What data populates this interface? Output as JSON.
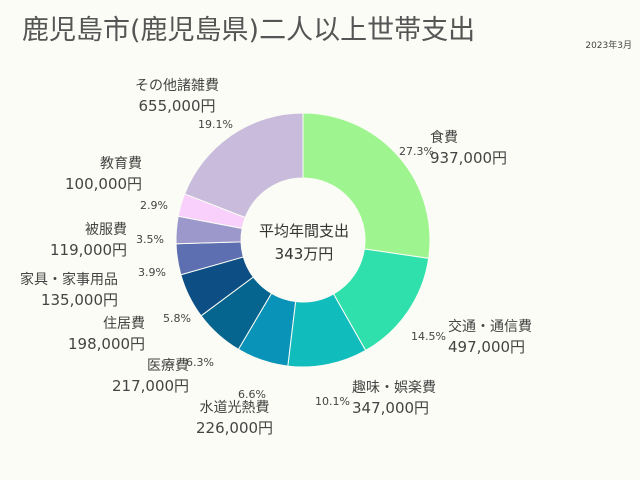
{
  "chart_data": {
    "type": "pie",
    "title": "鹿児島市(鹿児島県)二人以上世帯支出",
    "date": "2023年3月",
    "center_label": [
      "平均年間支出",
      "343万円"
    ],
    "slices": [
      {
        "name": "食費",
        "value_label": "937,000円",
        "value": 937000,
        "percent": 27.3,
        "percent_label": "27.3%",
        "color": "#9ef58f"
      },
      {
        "name": "交通・通信費",
        "value_label": "497,000円",
        "value": 497000,
        "percent": 14.5,
        "percent_label": "14.5%",
        "color": "#2fe0ad"
      },
      {
        "name": "趣味・娯楽費",
        "value_label": "347,000円",
        "value": 347000,
        "percent": 10.1,
        "percent_label": "10.1%",
        "color": "#11bcbd"
      },
      {
        "name": "水道光熱費",
        "value_label": "226,000円",
        "value": 226000,
        "percent": 6.6,
        "percent_label": "6.6%",
        "color": "#0a93b8"
      },
      {
        "name": "医療費",
        "value_label": "217,000円",
        "value": 217000,
        "percent": 6.3,
        "percent_label": "6.3%",
        "color": "#06658e"
      },
      {
        "name": "住居費",
        "value_label": "198,000円",
        "value": 198000,
        "percent": 5.8,
        "percent_label": "5.8%",
        "color": "#0d4f85"
      },
      {
        "name": "家具・家事用品",
        "value_label": "135,000円",
        "value": 135000,
        "percent": 3.9,
        "percent_label": "3.9%",
        "color": "#5d6fb0"
      },
      {
        "name": "被服費",
        "value_label": "119,000円",
        "value": 119000,
        "percent": 3.5,
        "percent_label": "3.5%",
        "color": "#9c98cc"
      },
      {
        "name": "教育費",
        "value_label": "100,000円",
        "value": 100000,
        "percent": 2.9,
        "percent_label": "2.9%",
        "color": "#f8d0fb"
      },
      {
        "name": "その他諸雑費",
        "value_label": "655,000円",
        "value": 655000,
        "percent": 19.1,
        "percent_label": "19.1%",
        "color": "#c9bbdc"
      }
    ]
  }
}
